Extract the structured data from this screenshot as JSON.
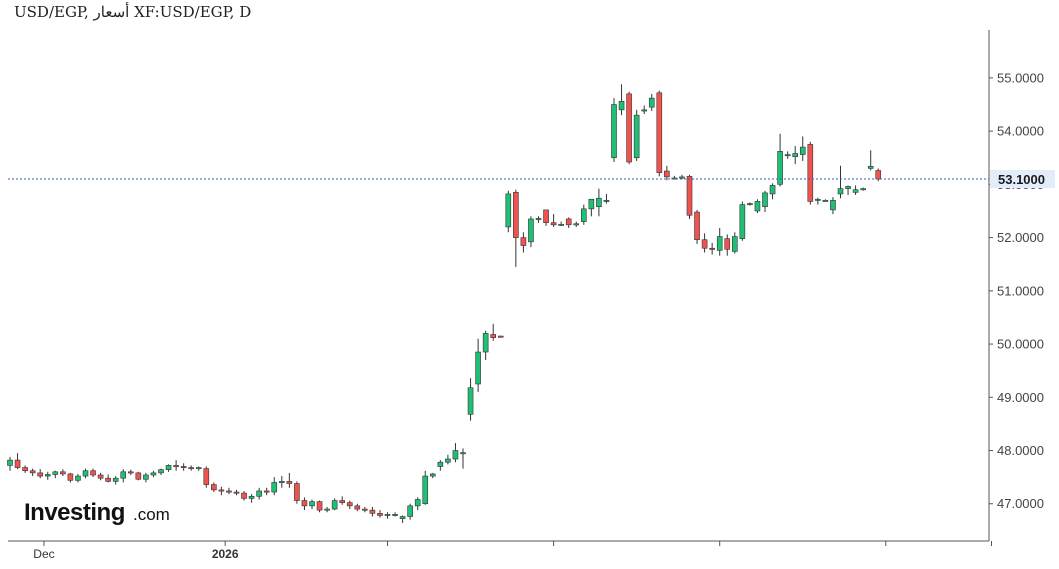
{
  "chart_data": {
    "type": "candlestick",
    "title": "USD/EGP, أسعار‎ ‎XF:USD/EGP, D",
    "instrument": "USD/EGP",
    "interval": "D",
    "ylim": [
      46.3,
      55.9
    ],
    "yticks": [
      "47.0000",
      "48.0000",
      "49.0000",
      "50.0000",
      "51.0000",
      "52.0000",
      "53.0000",
      "54.0000",
      "55.0000"
    ],
    "x_labels": [
      {
        "label": "Dec",
        "index": 4.5,
        "bold": false
      },
      {
        "label": "2026",
        "index": 28.5,
        "bold": true
      },
      {
        "label": "",
        "index": 50,
        "bold": false
      },
      {
        "label": "",
        "index": 72,
        "bold": false
      },
      {
        "label": "",
        "index": 94,
        "bold": false
      },
      {
        "label": "",
        "index": 116,
        "bold": false
      },
      {
        "label": "",
        "index": 130,
        "bold": false
      }
    ],
    "last_price": "53.1000",
    "last_value": 53.1,
    "colors": {
      "up": "#1fbf75",
      "down": "#ef5350",
      "wick": "#333333",
      "priceLine": "#3b5fc0",
      "badge": "#e3ecfb"
    },
    "ohlc": [
      [
        47.72,
        47.88,
        47.62,
        47.82
      ],
      [
        47.82,
        47.95,
        47.65,
        47.68
      ],
      [
        47.68,
        47.72,
        47.58,
        47.62
      ],
      [
        47.62,
        47.66,
        47.52,
        47.58
      ],
      [
        47.58,
        47.65,
        47.48,
        47.52
      ],
      [
        47.52,
        47.6,
        47.45,
        47.55
      ],
      [
        47.55,
        47.62,
        47.48,
        47.6
      ],
      [
        47.6,
        47.65,
        47.52,
        47.56
      ],
      [
        47.56,
        47.58,
        47.4,
        47.44
      ],
      [
        47.44,
        47.56,
        47.4,
        47.52
      ],
      [
        47.52,
        47.66,
        47.48,
        47.62
      ],
      [
        47.62,
        47.66,
        47.5,
        47.54
      ],
      [
        47.54,
        47.58,
        47.44,
        47.48
      ],
      [
        47.48,
        47.55,
        47.4,
        47.42
      ],
      [
        47.42,
        47.52,
        47.36,
        47.48
      ],
      [
        47.48,
        47.65,
        47.4,
        47.6
      ],
      [
        47.6,
        47.64,
        47.54,
        47.58
      ],
      [
        47.58,
        47.6,
        47.44,
        47.46
      ],
      [
        47.46,
        47.58,
        47.4,
        47.54
      ],
      [
        47.54,
        47.62,
        47.5,
        47.58
      ],
      [
        47.58,
        47.66,
        47.54,
        47.64
      ],
      [
        47.64,
        47.74,
        47.6,
        47.72
      ],
      [
        47.72,
        47.82,
        47.62,
        47.7
      ],
      [
        47.7,
        47.76,
        47.62,
        47.68
      ],
      [
        47.68,
        47.72,
        47.62,
        47.66
      ],
      [
        47.66,
        47.7,
        47.62,
        47.68
      ],
      [
        47.66,
        47.7,
        47.3,
        47.36
      ],
      [
        47.36,
        47.4,
        47.22,
        47.26
      ],
      [
        47.26,
        47.32,
        47.16,
        47.24
      ],
      [
        47.24,
        47.3,
        47.18,
        47.22
      ],
      [
        47.22,
        47.26,
        47.16,
        47.2
      ],
      [
        47.2,
        47.24,
        47.06,
        47.1
      ],
      [
        47.1,
        47.18,
        47.02,
        47.14
      ],
      [
        47.14,
        47.3,
        47.08,
        47.24
      ],
      [
        47.24,
        47.3,
        47.16,
        47.22
      ],
      [
        47.22,
        47.5,
        47.16,
        47.4
      ],
      [
        47.4,
        47.52,
        47.3,
        47.42
      ],
      [
        47.42,
        47.58,
        47.3,
        47.38
      ],
      [
        47.38,
        47.42,
        47.0,
        47.06
      ],
      [
        47.06,
        47.12,
        46.88,
        46.96
      ],
      [
        46.96,
        47.08,
        46.9,
        47.04
      ],
      [
        47.04,
        47.06,
        46.84,
        46.88
      ],
      [
        46.88,
        46.94,
        46.84,
        46.9
      ],
      [
        46.9,
        47.1,
        46.88,
        47.06
      ],
      [
        47.06,
        47.14,
        46.98,
        47.02
      ],
      [
        47.02,
        47.06,
        46.9,
        46.96
      ],
      [
        46.96,
        47.0,
        46.86,
        46.9
      ],
      [
        46.9,
        46.94,
        46.84,
        46.88
      ],
      [
        46.88,
        46.94,
        46.76,
        46.82
      ],
      [
        46.82,
        46.88,
        46.74,
        46.78
      ],
      [
        46.78,
        46.84,
        46.72,
        46.8
      ],
      [
        46.8,
        46.84,
        46.76,
        46.8
      ],
      [
        46.72,
        46.78,
        46.64,
        46.76
      ],
      [
        46.76,
        47.0,
        46.7,
        46.96
      ],
      [
        46.96,
        47.12,
        46.88,
        47.08
      ],
      [
        47.0,
        47.62,
        46.98,
        47.52
      ],
      [
        47.52,
        47.58,
        47.48,
        47.56
      ],
      [
        47.7,
        47.82,
        47.62,
        47.78
      ],
      [
        47.78,
        47.92,
        47.74,
        47.84
      ],
      [
        47.84,
        48.14,
        47.78,
        48.0
      ],
      [
        47.96,
        48.04,
        47.66,
        47.96
      ],
      [
        48.68,
        49.36,
        48.56,
        49.18
      ],
      [
        49.25,
        50.1,
        49.1,
        49.85
      ],
      [
        49.85,
        50.25,
        49.7,
        50.2
      ],
      [
        50.18,
        50.38,
        50.06,
        50.12
      ],
      [
        50.15,
        50.16,
        50.12,
        50.14
      ],
      [
        52.2,
        52.88,
        52.1,
        52.82
      ],
      [
        52.85,
        52.9,
        51.45,
        52.0
      ],
      [
        52.0,
        52.1,
        51.72,
        51.85
      ],
      [
        51.92,
        52.4,
        51.82,
        52.35
      ],
      [
        52.35,
        52.4,
        52.28,
        52.36
      ],
      [
        52.52,
        52.52,
        52.22,
        52.28
      ],
      [
        52.28,
        52.44,
        52.2,
        52.24
      ],
      [
        52.24,
        52.3,
        52.22,
        52.25
      ],
      [
        52.35,
        52.38,
        52.18,
        52.24
      ],
      [
        52.24,
        52.3,
        52.2,
        52.26
      ],
      [
        52.3,
        52.62,
        52.24,
        52.54
      ],
      [
        52.54,
        52.68,
        52.4,
        52.72
      ],
      [
        52.58,
        52.92,
        52.4,
        52.74
      ],
      [
        52.68,
        52.82,
        52.64,
        52.7
      ],
      [
        53.5,
        54.62,
        53.42,
        54.5
      ],
      [
        54.4,
        54.88,
        54.3,
        54.56
      ],
      [
        54.7,
        54.74,
        53.38,
        53.42
      ],
      [
        53.5,
        54.4,
        53.44,
        54.3
      ],
      [
        54.38,
        54.48,
        54.32,
        54.4
      ],
      [
        54.45,
        54.7,
        54.38,
        54.62
      ],
      [
        54.72,
        54.76,
        53.15,
        53.22
      ],
      [
        53.25,
        53.35,
        53.08,
        53.14
      ],
      [
        53.12,
        53.16,
        53.1,
        53.12
      ],
      [
        53.14,
        53.18,
        53.1,
        53.14
      ],
      [
        53.15,
        53.18,
        52.35,
        52.42
      ],
      [
        52.48,
        52.52,
        51.88,
        51.96
      ],
      [
        51.96,
        52.08,
        51.72,
        51.8
      ],
      [
        51.8,
        51.9,
        51.68,
        51.78
      ],
      [
        51.76,
        52.18,
        51.66,
        52.02
      ],
      [
        51.98,
        52.06,
        51.66,
        51.78
      ],
      [
        51.74,
        52.1,
        51.7,
        52.02
      ],
      [
        51.98,
        52.68,
        51.94,
        52.62
      ],
      [
        52.62,
        52.66,
        52.6,
        52.64
      ],
      [
        52.5,
        52.72,
        52.46,
        52.68
      ],
      [
        52.58,
        52.88,
        52.48,
        52.84
      ],
      [
        52.82,
        53.02,
        52.72,
        52.98
      ],
      [
        53.0,
        53.95,
        52.96,
        53.62
      ],
      [
        53.54,
        53.62,
        53.48,
        53.56
      ],
      [
        53.52,
        53.72,
        53.38,
        53.58
      ],
      [
        53.56,
        53.9,
        53.44,
        53.7
      ],
      [
        53.75,
        53.8,
        52.62,
        52.68
      ],
      [
        52.7,
        52.75,
        52.62,
        52.72
      ],
      [
        52.7,
        52.72,
        52.68,
        52.7
      ],
      [
        52.52,
        52.76,
        52.44,
        52.7
      ],
      [
        52.82,
        53.35,
        52.74,
        52.92
      ],
      [
        52.92,
        52.98,
        52.8,
        52.96
      ],
      [
        52.85,
        52.98,
        52.8,
        52.9
      ],
      [
        52.9,
        52.94,
        52.88,
        52.92
      ],
      [
        53.3,
        53.64,
        53.26,
        53.34
      ],
      [
        53.26,
        53.3,
        53.06,
        53.1
      ]
    ]
  }
}
